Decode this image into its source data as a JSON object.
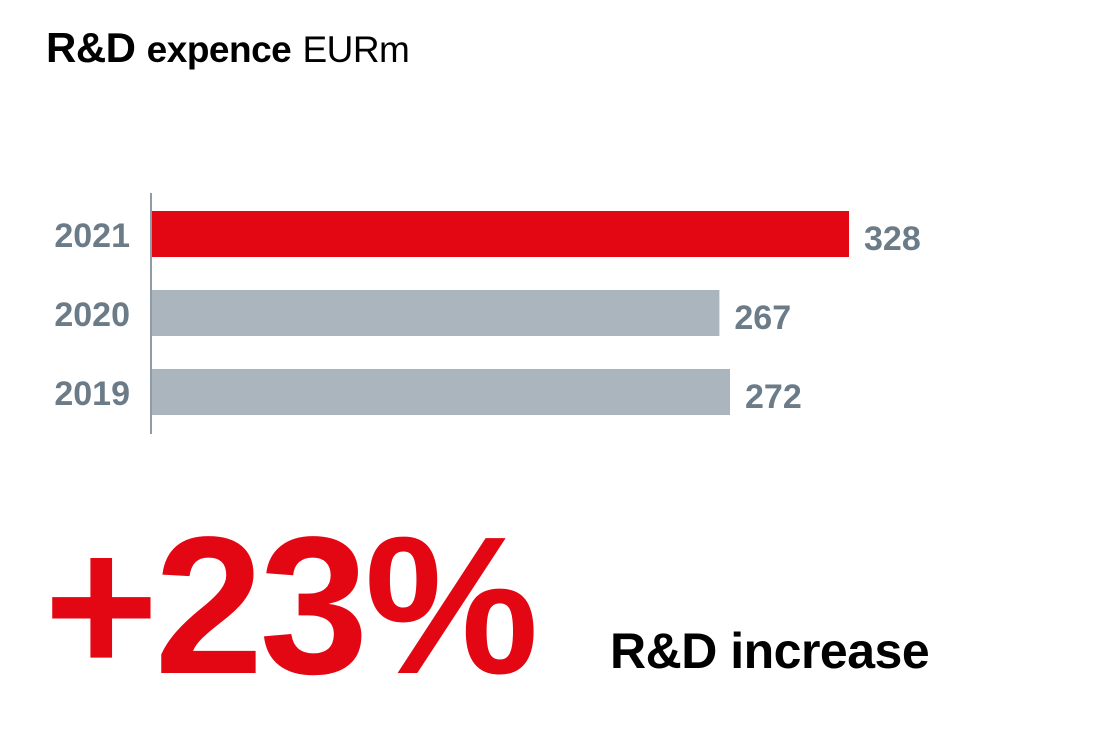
{
  "title": {
    "main": "R&D",
    "sub": "expence",
    "unit": "EURm"
  },
  "chart_data": {
    "type": "bar",
    "orientation": "horizontal",
    "categories": [
      "2021",
      "2020",
      "2019"
    ],
    "values": [
      328,
      267,
      272
    ],
    "value_labels": [
      "328",
      "267",
      "272"
    ],
    "colors": [
      "#e30613",
      "#abb5bd",
      "#abb5bd"
    ],
    "title": "R&D expence EURm",
    "xlabel": "",
    "ylabel": "",
    "grid": false,
    "legend": "none",
    "value_label_color": "#6b7b87",
    "category_label_color": "#6b7b87"
  },
  "highlight": {
    "value": "+23%",
    "label": "R&D increase",
    "color": "#e30613"
  }
}
